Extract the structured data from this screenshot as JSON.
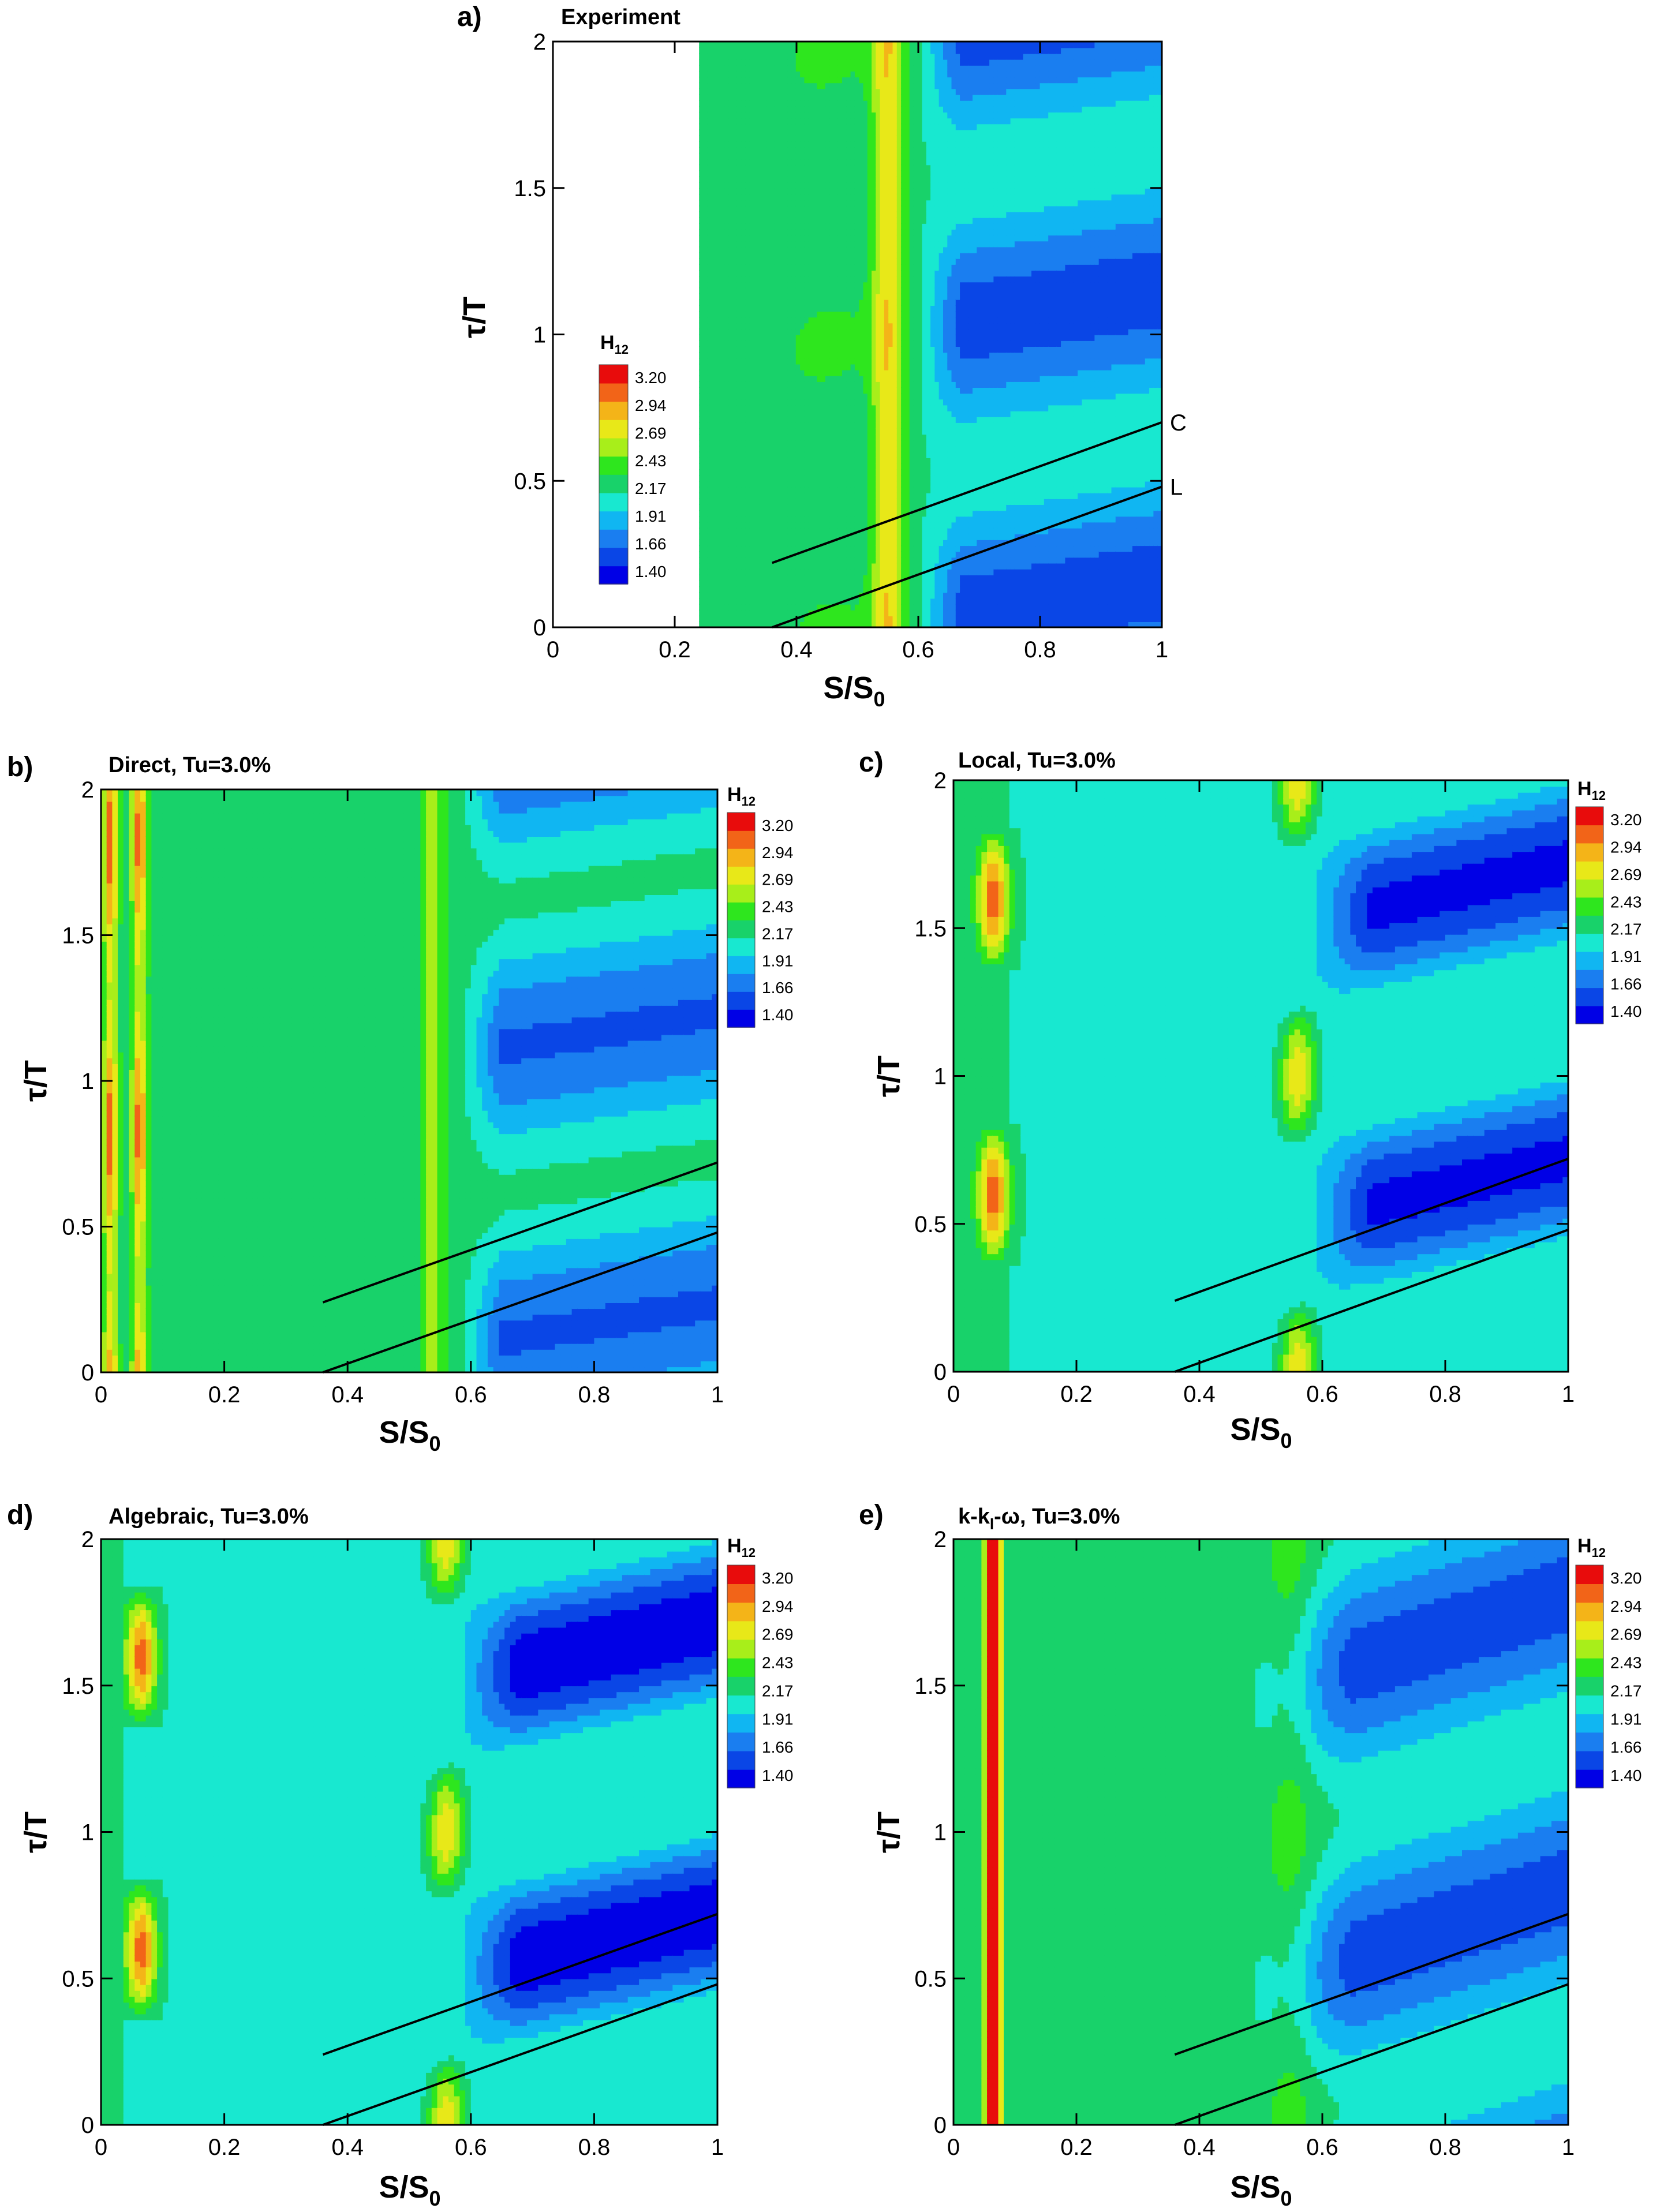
{
  "colorbar": {
    "title": "H",
    "title_sub": "12",
    "levels": [
      "3.20",
      "2.94",
      "2.69",
      "2.43",
      "2.17",
      "1.91",
      "1.66",
      "1.40"
    ],
    "colors": [
      "#0000e6",
      "#0a46e6",
      "#1a7ef0",
      "#10b6f2",
      "#18e8d0",
      "#18d26a",
      "#2ee61e",
      "#a8ee1a",
      "#e8e818",
      "#f4b418",
      "#f26418",
      "#e80c0c"
    ]
  },
  "chart_data": [
    {
      "type": "heatmap",
      "panel_label": "a)",
      "title": "Experiment",
      "xlabel": "S/S",
      "xlabel_sub": "0",
      "ylabel": "τ/T",
      "xlim": [
        0,
        1
      ],
      "ylim": [
        0,
        2
      ],
      "xticks": [
        "0",
        "0.2",
        "0.4",
        "0.6",
        "0.8",
        "1"
      ],
      "yticks": [
        "0",
        "0.5",
        "1",
        "1.5",
        "2"
      ],
      "data_x_start": 0.24,
      "line_labels": [
        "C",
        "L"
      ],
      "lines": [
        {
          "name": "C",
          "x": [
            0.36,
            1.0
          ],
          "y": [
            0.22,
            0.7
          ]
        },
        {
          "name": "L",
          "x": [
            0.36,
            1.0
          ],
          "y": [
            0.0,
            0.48
          ]
        }
      ]
    },
    {
      "type": "heatmap",
      "panel_label": "b)",
      "title": "Direct, Tu=3.0%",
      "xlabel": "S/S",
      "xlabel_sub": "0",
      "ylabel": "τ/T",
      "xlim": [
        0,
        1
      ],
      "ylim": [
        0,
        2
      ],
      "xticks": [
        "0",
        "0.2",
        "0.4",
        "0.6",
        "0.8",
        "1"
      ],
      "yticks": [
        "0",
        "0.5",
        "1",
        "1.5",
        "2"
      ],
      "lines": [
        {
          "x": [
            0.36,
            1.0
          ],
          "y": [
            0.24,
            0.72
          ]
        },
        {
          "x": [
            0.36,
            1.0
          ],
          "y": [
            0.0,
            0.48
          ]
        }
      ]
    },
    {
      "type": "heatmap",
      "panel_label": "c)",
      "title": "Local, Tu=3.0%",
      "xlabel": "S/S",
      "xlabel_sub": "0",
      "ylabel": "τ/T",
      "xlim": [
        0,
        1
      ],
      "ylim": [
        0,
        2
      ],
      "xticks": [
        "0",
        "0.2",
        "0.4",
        "0.6",
        "0.8",
        "1"
      ],
      "yticks": [
        "0",
        "0.5",
        "1",
        "1.5",
        "2"
      ],
      "lines": [
        {
          "x": [
            0.36,
            1.0
          ],
          "y": [
            0.24,
            0.72
          ]
        },
        {
          "x": [
            0.36,
            1.0
          ],
          "y": [
            0.0,
            0.48
          ]
        }
      ]
    },
    {
      "type": "heatmap",
      "panel_label": "d)",
      "title": "Algebraic, Tu=3.0%",
      "xlabel": "S/S",
      "xlabel_sub": "0",
      "ylabel": "τ/T",
      "xlim": [
        0,
        1
      ],
      "ylim": [
        0,
        2
      ],
      "xticks": [
        "0",
        "0.2",
        "0.4",
        "0.6",
        "0.8",
        "1"
      ],
      "yticks": [
        "0",
        "0.5",
        "1",
        "1.5",
        "2"
      ],
      "lines": [
        {
          "x": [
            0.36,
            1.0
          ],
          "y": [
            0.24,
            0.72
          ]
        },
        {
          "x": [
            0.36,
            1.0
          ],
          "y": [
            0.0,
            0.48
          ]
        }
      ]
    },
    {
      "type": "heatmap",
      "panel_label": "e)",
      "title": "k-k",
      "title_sub": "l",
      "title_tail": "-ω, Tu=3.0%",
      "xlabel": "S/S",
      "xlabel_sub": "0",
      "ylabel": "τ/T",
      "xlim": [
        0,
        1
      ],
      "ylim": [
        0,
        2
      ],
      "xticks": [
        "0",
        "0.2",
        "0.4",
        "0.6",
        "0.8",
        "1"
      ],
      "yticks": [
        "0",
        "0.5",
        "1",
        "1.5",
        "2"
      ],
      "lines": [
        {
          "x": [
            0.36,
            1.0
          ],
          "y": [
            0.24,
            0.72
          ]
        },
        {
          "x": [
            0.36,
            1.0
          ],
          "y": [
            0.0,
            0.48
          ]
        }
      ]
    }
  ]
}
